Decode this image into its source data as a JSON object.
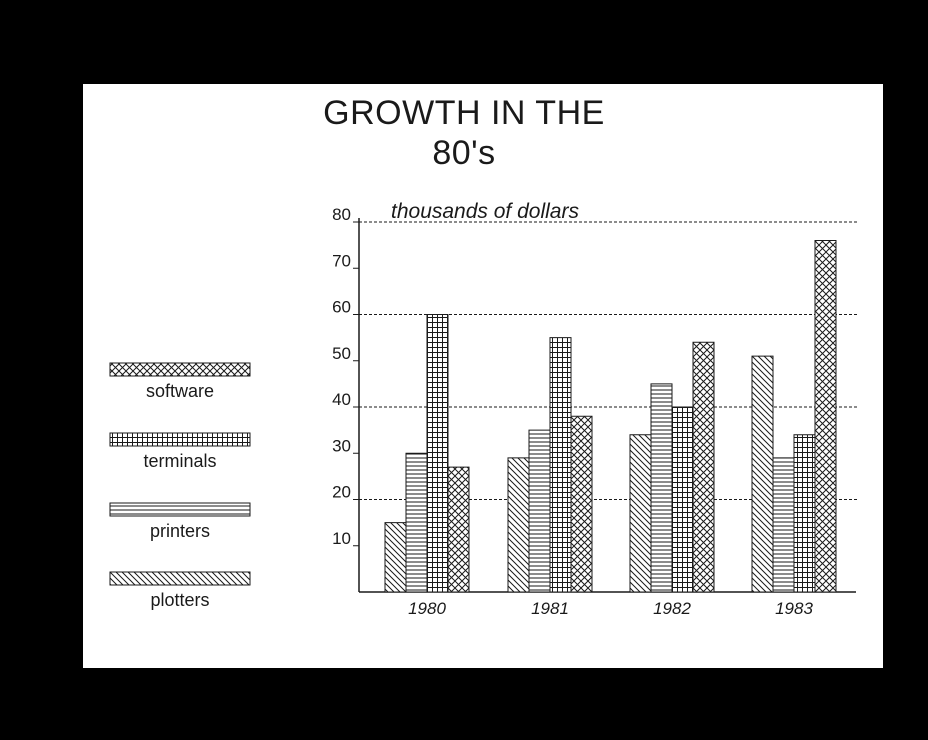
{
  "chart_data": {
    "type": "bar",
    "title_lines": [
      "GROWTH IN THE",
      "80's"
    ],
    "ylabel": "thousands of dollars",
    "xlabel": "",
    "categories": [
      "1980",
      "1981",
      "1982",
      "1983"
    ],
    "ylim": [
      0,
      80
    ],
    "yticks": [
      "10",
      "20",
      "30",
      "40",
      "50",
      "60",
      "70",
      "80"
    ],
    "gridlines_at": [
      20,
      40,
      60,
      80
    ],
    "grid": "dashed horizontal",
    "legend_placement": "left",
    "series": [
      {
        "name": "plotters",
        "pattern": "diagonal-hatch",
        "values": [
          15,
          29,
          34,
          51
        ]
      },
      {
        "name": "printers",
        "pattern": "horizontal-lines",
        "values": [
          30,
          35,
          45,
          29
        ]
      },
      {
        "name": "terminals",
        "pattern": "grid",
        "values": [
          60,
          55,
          40,
          34
        ]
      },
      {
        "name": "software",
        "pattern": "crosshatch",
        "values": [
          27,
          38,
          54,
          76
        ]
      }
    ],
    "legend_order": [
      "software",
      "terminals",
      "printers",
      "plotters"
    ]
  },
  "colors": {
    "background": "#000000",
    "slide": "#ffffff",
    "ink": "#1a1a1a"
  }
}
